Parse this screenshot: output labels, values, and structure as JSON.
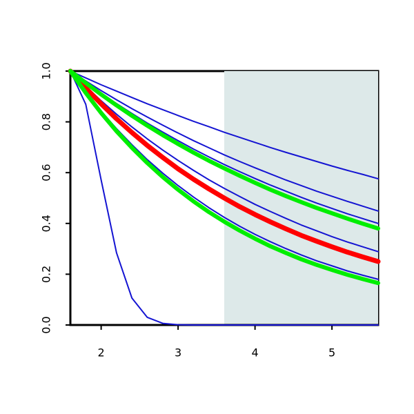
{
  "chart_data": {
    "type": "line",
    "x": [
      1.6,
      1.8,
      2.0,
      2.2,
      2.4,
      2.6,
      2.8,
      3.0,
      3.2,
      3.4,
      3.6,
      3.8,
      4.0,
      4.2,
      4.4,
      4.6,
      4.8,
      5.0,
      5.2,
      5.4,
      5.6
    ],
    "xlim": [
      1.6,
      5.6
    ],
    "xticks": [
      2,
      3,
      4,
      5
    ],
    "ylim": [
      0,
      1
    ],
    "yticks": [
      {
        "value": 0,
        "label": "0.0"
      },
      0.2,
      0.4,
      0.6,
      0.8,
      {
        "value": 1,
        "label": "1.0"
      }
    ],
    "shaded_region": {
      "xlim": [
        3.6,
        5.6
      ],
      "color": "#dde9e9"
    },
    "series": [
      {
        "color": "#1414d2",
        "linewidth": 2,
        "values": [
          1,
          0.973,
          0.946,
          0.921,
          0.896,
          0.871,
          0.848,
          0.825,
          0.802,
          0.781,
          0.759,
          0.739,
          0.719,
          0.699,
          0.68,
          0.662,
          0.644,
          0.626,
          0.609,
          0.593,
          0.576
        ]
      },
      {
        "color": "#1414d2",
        "linewidth": 2,
        "values": [
          1,
          0.961,
          0.923,
          0.887,
          0.852,
          0.819,
          0.787,
          0.756,
          0.726,
          0.698,
          0.67,
          0.644,
          0.619,
          0.595,
          0.571,
          0.549,
          0.527,
          0.507,
          0.487,
          0.468,
          0.449
        ]
      },
      {
        "color": "#1414d2",
        "linewidth": 2,
        "values": [
          1,
          0.955,
          0.912,
          0.872,
          0.833,
          0.795,
          0.76,
          0.726,
          0.693,
          0.662,
          0.632,
          0.604,
          0.577,
          0.551,
          0.527,
          0.503,
          0.48,
          0.459,
          0.438,
          0.419,
          0.4
        ]
      },
      {
        "color": "#1414d2",
        "linewidth": 2,
        "values": [
          1,
          0.94,
          0.883,
          0.83,
          0.78,
          0.733,
          0.689,
          0.648,
          0.609,
          0.572,
          0.538,
          0.506,
          0.475,
          0.447,
          0.42,
          0.394,
          0.371,
          0.348,
          0.327,
          0.308,
          0.289
        ]
      },
      {
        "color": "#1414d2",
        "linewidth": 2,
        "values": [
          1,
          0.918,
          0.842,
          0.773,
          0.71,
          0.651,
          0.598,
          0.549,
          0.504,
          0.462,
          0.424,
          0.389,
          0.357,
          0.328,
          0.301,
          0.276,
          0.253,
          0.233,
          0.213,
          0.196,
          0.18
        ]
      },
      {
        "color": "#1414d2",
        "linewidth": 2,
        "values": [
          1,
          0.869,
          0.571,
          0.284,
          0.106,
          0.03,
          0.0065,
          0.001,
          0.0001,
          0,
          0,
          0,
          0,
          0,
          0,
          0,
          0,
          0,
          0,
          0,
          0
        ]
      },
      {
        "color": "#ff0000",
        "linewidth": 7,
        "values": [
          1,
          0.933,
          0.871,
          0.812,
          0.758,
          0.707,
          0.66,
          0.615,
          0.574,
          0.536,
          0.5,
          0.466,
          0.435,
          0.406,
          0.379,
          0.353,
          0.33,
          0.308,
          0.287,
          0.268,
          0.25
        ]
      },
      {
        "color": "#00ee00",
        "linewidth": 6,
        "values": [
          1,
          0.953,
          0.908,
          0.865,
          0.824,
          0.785,
          0.748,
          0.713,
          0.679,
          0.647,
          0.617,
          0.588,
          0.56,
          0.533,
          0.508,
          0.484,
          0.461,
          0.44,
          0.419,
          0.399,
          0.38
        ]
      },
      {
        "color": "#00ee00",
        "linewidth": 6,
        "values": [
          1,
          0.914,
          0.835,
          0.763,
          0.698,
          0.638,
          0.583,
          0.533,
          0.487,
          0.445,
          0.407,
          0.372,
          0.34,
          0.31,
          0.284,
          0.259,
          0.237,
          0.217,
          0.198,
          0.181,
          0.165
        ]
      }
    ]
  }
}
